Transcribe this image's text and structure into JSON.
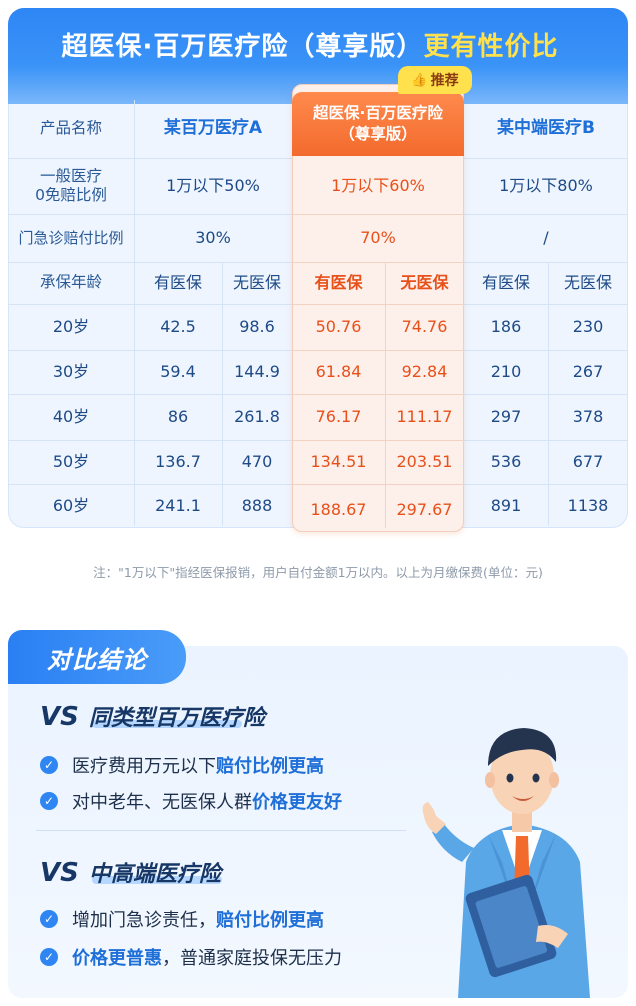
{
  "header": {
    "title_main": "超医保·百万医疗险（尊享版）",
    "title_highlight": "更有性价比"
  },
  "badge": {
    "label": "推荐",
    "icon": "thumbs-up-icon"
  },
  "table": {
    "col_headers": {
      "label": "产品名称",
      "product_a": "某百万医疗A",
      "featured_line1": "超医保·百万医疗险",
      "featured_line2": "（尊享版）",
      "product_b": "某中端医疗B"
    },
    "rows_general": [
      {
        "label_line1": "一般医疗",
        "label_line2": "0免赔比例",
        "a": "1万以下50%",
        "featured": "1万以下60%",
        "b": "1万以下80%"
      },
      {
        "label": "门急诊赔付比例",
        "a": "30%",
        "featured": "70%",
        "b": "/"
      }
    ],
    "age_header": {
      "label": "承保年龄",
      "with_insurance": "有医保",
      "without_insurance": "无医保"
    },
    "age_rows": [
      {
        "age": "20岁",
        "a_with": "42.5",
        "a_without": "98.6",
        "f_with": "50.76",
        "f_without": "74.76",
        "b_with": "186",
        "b_without": "230"
      },
      {
        "age": "30岁",
        "a_with": "59.4",
        "a_without": "144.9",
        "f_with": "61.84",
        "f_without": "92.84",
        "b_with": "210",
        "b_without": "267"
      },
      {
        "age": "40岁",
        "a_with": "86",
        "a_without": "261.8",
        "f_with": "76.17",
        "f_without": "111.17",
        "b_with": "297",
        "b_without": "378"
      },
      {
        "age": "50岁",
        "a_with": "136.7",
        "a_without": "470",
        "f_with": "134.51",
        "f_without": "203.51",
        "b_with": "536",
        "b_without": "677"
      },
      {
        "age": "60岁",
        "a_with": "241.1",
        "a_without": "888",
        "f_with": "188.67",
        "f_without": "297.67",
        "b_with": "891",
        "b_without": "1138"
      }
    ]
  },
  "note": "注：\"1万以下\"指经医保报销，用户自付金额1万以内。以上为月缴保费(单位：元)",
  "conclusion": {
    "tab_label": "对比结论",
    "sections": [
      {
        "vs": "VS",
        "title": "同类型百万医疗险",
        "points": [
          {
            "normal": "医疗费用万元以下",
            "emphasis": "赔付比例更高",
            "suffix": ""
          },
          {
            "normal": "对中老年、无医保人群",
            "emphasis": "价格更友好",
            "suffix": ""
          }
        ]
      },
      {
        "vs": "VS",
        "title": "中高端医疗险",
        "points": [
          {
            "normal": "增加门急诊责任，",
            "emphasis": "赔付比例更高",
            "suffix": ""
          },
          {
            "normal": "",
            "emphasis": "价格更普惠",
            "suffix": "，普通家庭投保无压力"
          }
        ]
      }
    ]
  },
  "colors": {
    "primary_blue": "#2e86f5",
    "highlight_yellow": "#ffe14d",
    "featured_orange": "#f36a2d",
    "featured_text": "#e8501a"
  }
}
